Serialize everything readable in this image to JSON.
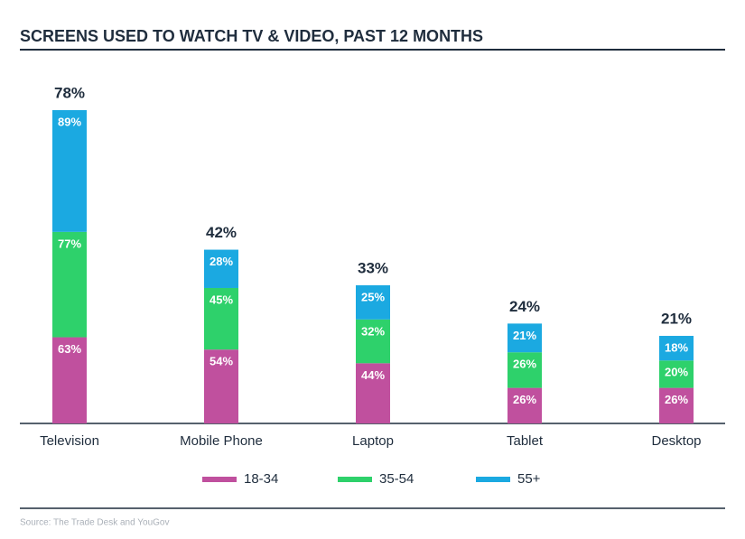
{
  "chart_data": {
    "type": "bar",
    "stacked": true,
    "title": "SCREENS USED TO WATCH TV & VIDEO, PAST 12 MONTHS",
    "categories": [
      "Television",
      "Mobile Phone",
      "Laptop",
      "Tablet",
      "Desktop"
    ],
    "series": [
      {
        "name": "18-34",
        "color": "#c0509e",
        "values": [
          63,
          54,
          44,
          26,
          26
        ],
        "value_labels": [
          "63%",
          "54%",
          "44%",
          "26%",
          "26%"
        ]
      },
      {
        "name": "35-54",
        "color": "#2ed16b",
        "values": [
          77,
          45,
          32,
          26,
          20
        ],
        "value_labels": [
          "77%",
          "45%",
          "32%",
          "26%",
          "20%"
        ]
      },
      {
        "name": "55+",
        "color": "#1ba9e1",
        "values": [
          89,
          28,
          25,
          21,
          18
        ],
        "value_labels": [
          "89%",
          "28%",
          "25%",
          "21%",
          "18%"
        ]
      }
    ],
    "totals": {
      "values": [
        78,
        42,
        33,
        24,
        21
      ],
      "value_labels": [
        "78%",
        "42%",
        "33%",
        "24%",
        "21%"
      ]
    },
    "source": "Source: The Trade Desk and YouGov"
  }
}
